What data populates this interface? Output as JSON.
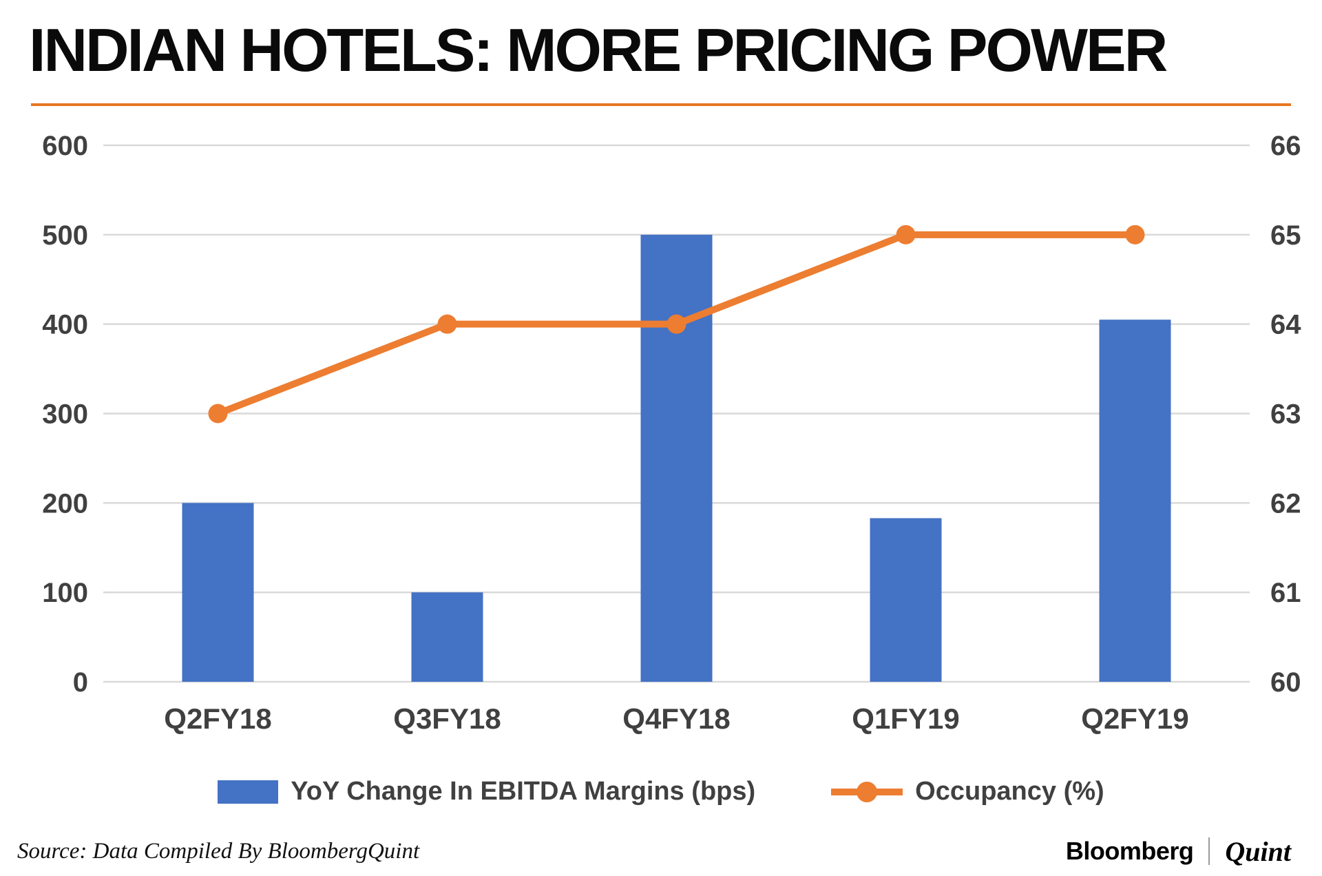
{
  "title": "INDIAN HOTELS: MORE PRICING POWER",
  "source": "Source: Data Compiled By BloombergQuint",
  "brand": {
    "bloomberg": "Bloomberg",
    "quint": "Quint"
  },
  "colors": {
    "bar": "#4472c4",
    "line": "#ed7d31",
    "accent_rule": "#e87722",
    "grid": "#d9d9d9",
    "axis_text": "#404040"
  },
  "chart_data": {
    "type": "bar",
    "subtype": "combo bar+line, dual axis",
    "categories": [
      "Q2FY18",
      "Q3FY18",
      "Q4FY18",
      "Q1FY19",
      "Q2FY19"
    ],
    "series": [
      {
        "name": "YoY Change In EBITDA Margins (bps)",
        "type": "bar",
        "axis": "left",
        "values": [
          200,
          100,
          500,
          183,
          405
        ]
      },
      {
        "name": "Occupancy (%)",
        "type": "line",
        "axis": "right",
        "values": [
          63,
          64,
          64,
          65,
          65
        ]
      }
    ],
    "left_axis": {
      "ticks": [
        0,
        100,
        200,
        300,
        400,
        500,
        600
      ],
      "min": 0,
      "max": 600
    },
    "right_axis": {
      "ticks": [
        60,
        61,
        62,
        63,
        64,
        65,
        66
      ],
      "min": 60,
      "max": 66
    },
    "grid": "horizontal gridlines on",
    "legend_position": "bottom center",
    "legend": [
      {
        "label": "YoY Change In EBITDA Margins (bps)",
        "swatch": "bar"
      },
      {
        "label": "Occupancy (%)",
        "swatch": "line"
      }
    ]
  }
}
